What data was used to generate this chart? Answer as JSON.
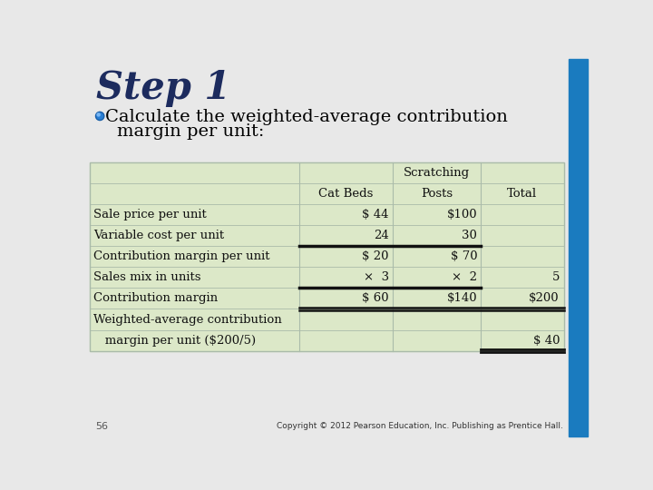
{
  "title": "Step 1",
  "bullet_text_line1": "Calculate the weighted-average contribution",
  "bullet_text_line2": "margin per unit:",
  "slide_bg": "#e8e8e8",
  "right_bar_color": "#1a7bbf",
  "table_bg_green": "#dce8c8",
  "table_bg_white": "#f5f8ee",
  "table_border_light": "#aabbaa",
  "thick_border": "#111111",
  "col_headers_r1": [
    "",
    "",
    "Scratching",
    ""
  ],
  "col_headers_r2": [
    "",
    "Cat Beds",
    "Posts",
    "Total"
  ],
  "rows": [
    [
      "Sale price per unit",
      "$ 44",
      "$100",
      ""
    ],
    [
      "Variable cost per unit",
      "24",
      "30",
      ""
    ],
    [
      "Contribution margin per unit",
      "$ 20",
      "$ 70",
      ""
    ],
    [
      "Sales mix in units",
      "×  3",
      "×  2",
      "5"
    ],
    [
      "Contribution margin",
      "$ 60",
      "$140",
      "$200"
    ],
    [
      "Weighted-average contribution",
      "",
      "",
      ""
    ],
    [
      "   margin per unit ($200/5)",
      "",
      "",
      "$ 40"
    ]
  ],
  "footer_number": "56",
  "footer_copyright": "Copyright © 2012 Pearson Education, Inc. Publishing as Prentice Hall."
}
